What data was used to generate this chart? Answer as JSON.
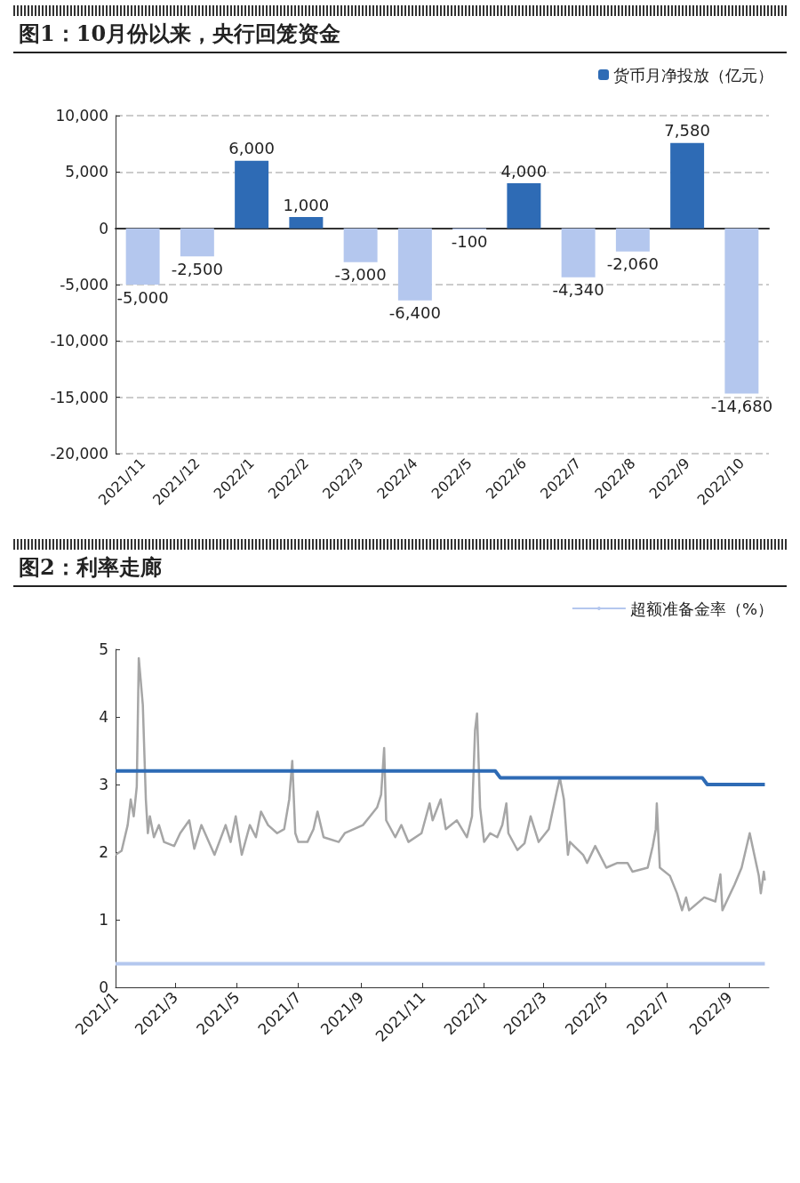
{
  "chart_data": [
    {
      "type": "bar",
      "title": "图1：10月份以来，央行回笼资金",
      "categories": [
        "2021/11",
        "2021/12",
        "2022/1",
        "2022/2",
        "2022/3",
        "2022/4",
        "2022/5",
        "2022/6",
        "2022/7",
        "2022/8",
        "2022/9",
        "2022/10"
      ],
      "series": [
        {
          "name": "货币月净投放（亿元）",
          "color": "#2e6bb5",
          "colors": [
            "#b4c7ee",
            "#b4c7ee",
            "#2e6bb5",
            "#2e6bb5",
            "#b4c7ee",
            "#b4c7ee",
            "#b4c7ee",
            "#2e6bb5",
            "#b4c7ee",
            "#b4c7ee",
            "#2e6bb5",
            "#b4c7ee"
          ],
          "values": [
            -5000,
            -2500,
            6000,
            1000,
            -3000,
            -6400,
            -100,
            4000,
            -4340,
            -2060,
            7580,
            -14680
          ],
          "value_labels": [
            "-5,000",
            "-2,500",
            "6,000",
            "1,000",
            "-3,000",
            "-6,400",
            "-100",
            "4,000",
            "-4,340",
            "-2,060",
            "7,580",
            "-14,680"
          ]
        }
      ],
      "ylim": [
        -20000,
        10000
      ],
      "yticks": [
        {
          "value": -20000,
          "label": "-20,000"
        },
        {
          "value": -15000,
          "label": "-15,000"
        },
        {
          "value": -10000,
          "label": "-10,000"
        },
        {
          "value": -5000,
          "label": "-5,000"
        },
        0,
        {
          "value": 5000,
          "label": "5,000"
        },
        {
          "value": 10000,
          "label": "10,000"
        }
      ],
      "grid": "y",
      "legend": "top right"
    },
    {
      "type": "line",
      "title": "图2：利率走廊",
      "series": [
        {
          "color": "#a6a6a6",
          "x": [
            "2021-01-01",
            "2021-01-07",
            "2021-01-13",
            "2021-01-16",
            "2021-01-19",
            "2021-01-22",
            "2021-01-24",
            "2021-01-28",
            "2021-01-31",
            "2021-02-02",
            "2021-02-04",
            "2021-02-08",
            "2021-02-13",
            "2021-02-18",
            "2021-02-28",
            "2021-03-06",
            "2021-03-15",
            "2021-03-20",
            "2021-03-27",
            "2021-04-09",
            "2021-04-20",
            "2021-04-25",
            "2021-04-30",
            "2021-05-06",
            "2021-05-14",
            "2021-05-20",
            "2021-05-25",
            "2021-06-01",
            "2021-06-10",
            "2021-06-17",
            "2021-06-22",
            "2021-06-25",
            "2021-06-28",
            "2021-07-01",
            "2021-07-10",
            "2021-07-16",
            "2021-07-20",
            "2021-07-26",
            "2021-08-10",
            "2021-08-16",
            "2021-08-25",
            "2021-09-03",
            "2021-09-10",
            "2021-09-17",
            "2021-09-21",
            "2021-09-24",
            "2021-09-26",
            "2021-10-05",
            "2021-10-11",
            "2021-10-18",
            "2021-10-31",
            "2021-11-08",
            "2021-11-11",
            "2021-11-19",
            "2021-11-24",
            "2021-12-05",
            "2021-12-15",
            "2021-12-20",
            "2021-12-23",
            "2021-12-25",
            "2021-12-28",
            "2022-01-01",
            "2022-01-07",
            "2022-01-14",
            "2022-01-19",
            "2022-01-23",
            "2022-01-25",
            "2022-02-03",
            "2022-02-10",
            "2022-02-16",
            "2022-02-24",
            "2022-03-06",
            "2022-03-14",
            "2022-03-17",
            "2022-03-21",
            "2022-03-25",
            "2022-03-27",
            "2022-04-09",
            "2022-04-13",
            "2022-04-21",
            "2022-05-02",
            "2022-05-13",
            "2022-05-23",
            "2022-05-28",
            "2022-06-12",
            "2022-06-17",
            "2022-06-20",
            "2022-06-21",
            "2022-06-24",
            "2022-07-04",
            "2022-07-11",
            "2022-07-16",
            "2022-07-20",
            "2022-07-23",
            "2022-08-07",
            "2022-08-18",
            "2022-08-23",
            "2022-08-25",
            "2022-09-06",
            "2022-09-13",
            "2022-09-21",
            "2022-09-30",
            "2022-10-02",
            "2022-10-05",
            "2022-10-06"
          ],
          "values": [
            1.96,
            2.02,
            2.4,
            2.78,
            2.53,
            2.97,
            4.87,
            4.18,
            2.78,
            2.28,
            2.53,
            2.22,
            2.4,
            2.15,
            2.09,
            2.28,
            2.47,
            2.05,
            2.4,
            1.96,
            2.4,
            2.15,
            2.53,
            1.96,
            2.4,
            2.22,
            2.6,
            2.4,
            2.28,
            2.34,
            2.78,
            3.35,
            2.28,
            2.15,
            2.15,
            2.34,
            2.6,
            2.22,
            2.15,
            2.28,
            2.34,
            2.4,
            2.53,
            2.66,
            2.85,
            3.54,
            2.47,
            2.22,
            2.4,
            2.15,
            2.28,
            2.72,
            2.47,
            2.78,
            2.34,
            2.47,
            2.22,
            2.53,
            3.8,
            4.05,
            2.66,
            2.15,
            2.28,
            2.22,
            2.4,
            2.72,
            2.28,
            2.03,
            2.13,
            2.53,
            2.15,
            2.34,
            2.9,
            3.1,
            2.78,
            1.96,
            2.15,
            1.96,
            1.84,
            2.09,
            1.77,
            1.84,
            1.84,
            1.71,
            1.77,
            2.09,
            2.34,
            2.72,
            1.77,
            1.65,
            1.39,
            1.14,
            1.33,
            1.14,
            1.33,
            1.27,
            1.67,
            1.14,
            1.52,
            1.77,
            2.28,
            1.65,
            1.39,
            1.71,
            1.58
          ]
        },
        {
          "color": "#2e6bb5",
          "x": [
            "2021-01-01",
            "2022-01-12",
            "2022-01-17",
            "2022-08-05",
            "2022-08-10",
            "2022-10-06"
          ],
          "values": [
            3.2,
            3.2,
            3.1,
            3.1,
            3.0,
            3.0
          ]
        },
        {
          "name": "超额准备金率（%）",
          "color": "#b4c7ee",
          "x": [
            "2021-01-01",
            "2022-10-06"
          ],
          "values": [
            0.35,
            0.35
          ]
        }
      ],
      "xlim": [
        "2021-01-01",
        "2022-10-10"
      ],
      "xticks": [
        {
          "value": "2021-01-01",
          "label": "2021/1"
        },
        {
          "value": "2021-03-01",
          "label": "2021/3"
        },
        {
          "value": "2021-05-01",
          "label": "2021/5"
        },
        {
          "value": "2021-07-01",
          "label": "2021/7"
        },
        {
          "value": "2021-09-01",
          "label": "2021/9"
        },
        {
          "value": "2021-11-01",
          "label": "2021/11"
        },
        {
          "value": "2022-01-01",
          "label": "2022/1"
        },
        {
          "value": "2022-03-01",
          "label": "2022/3"
        },
        {
          "value": "2022-05-01",
          "label": "2022/5"
        },
        {
          "value": "2022-07-01",
          "label": "2022/7"
        },
        {
          "value": "2022-09-01",
          "label": "2022/9"
        }
      ],
      "ylim": [
        0,
        5
      ],
      "yticks": [
        0,
        1,
        2,
        3,
        4,
        5
      ],
      "grid": false,
      "legend": "top right",
      "marker": "none"
    }
  ]
}
